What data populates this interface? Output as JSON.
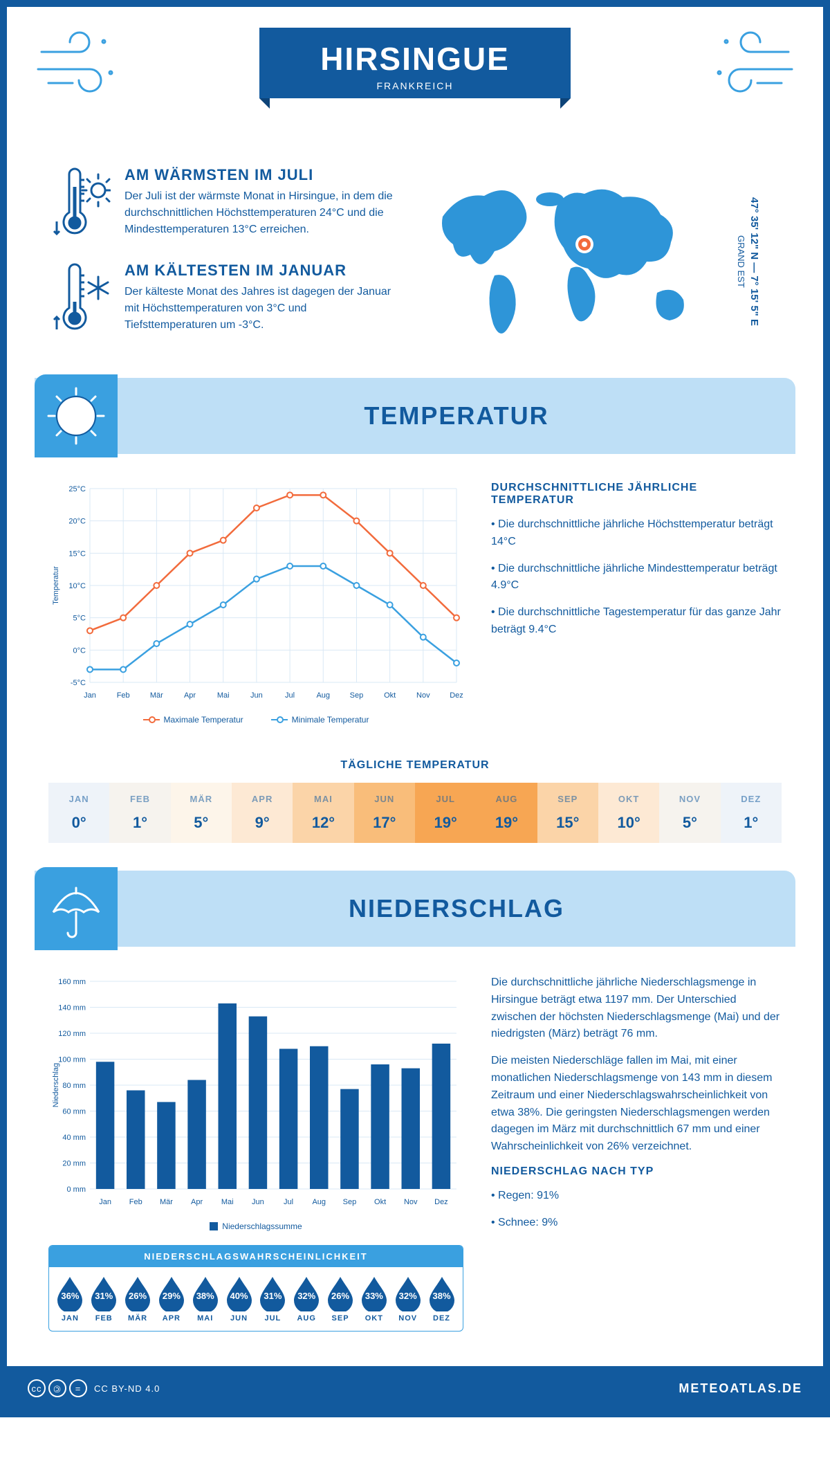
{
  "header": {
    "title": "HIRSINGUE",
    "country": "FRANKREICH"
  },
  "coords": {
    "text": "47° 35' 12\" N — 7° 15' 5\" E",
    "region": "GRAND EST"
  },
  "warm": {
    "title": "AM WÄRMSTEN IM JULI",
    "text": "Der Juli ist der wärmste Monat in Hirsingue, in dem die durchschnittlichen Höchsttemperaturen 24°C und die Mindesttemperaturen 13°C erreichen."
  },
  "cold": {
    "title": "AM KÄLTESTEN IM JANUAR",
    "text": "Der kälteste Monat des Jahres ist dagegen der Januar mit Höchsttemperaturen von 3°C und Tiefsttemperaturen um -3°C."
  },
  "temp_section": {
    "title": "TEMPERATUR"
  },
  "temp_chart": {
    "months": [
      "Jan",
      "Feb",
      "Mär",
      "Apr",
      "Mai",
      "Jun",
      "Jul",
      "Aug",
      "Sep",
      "Okt",
      "Nov",
      "Dez"
    ],
    "max": [
      3,
      5,
      10,
      15,
      17,
      22,
      24,
      24,
      20,
      15,
      10,
      5
    ],
    "min": [
      -3,
      -3,
      1,
      4,
      7,
      11,
      13,
      13,
      10,
      7,
      2,
      -2
    ],
    "ylabel": "Temperatur",
    "yticks": [
      "-5°C",
      "0°C",
      "5°C",
      "10°C",
      "15°C",
      "20°C",
      "25°C"
    ],
    "ylim": [
      -5,
      25
    ],
    "max_color": "#f26b3c",
    "min_color": "#3aa0e0",
    "grid_color": "#d9e8f5",
    "legend_max": "Maximale Temperatur",
    "legend_min": "Minimale Temperatur"
  },
  "temp_text": {
    "title": "DURCHSCHNITTLICHE JÄHRLICHE TEMPERATUR",
    "b1": "• Die durchschnittliche jährliche Höchsttemperatur beträgt 14°C",
    "b2": "• Die durchschnittliche jährliche Mindesttemperatur beträgt 4.9°C",
    "b3": "• Die durchschnittliche Tagestemperatur für das ganze Jahr beträgt 9.4°C"
  },
  "daily": {
    "title": "TÄGLICHE TEMPERATUR",
    "months": [
      "JAN",
      "FEB",
      "MÄR",
      "APR",
      "MAI",
      "JUN",
      "JUL",
      "AUG",
      "SEP",
      "OKT",
      "NOV",
      "DEZ"
    ],
    "temps": [
      "0°",
      "1°",
      "5°",
      "9°",
      "12°",
      "17°",
      "19°",
      "19°",
      "15°",
      "10°",
      "5°",
      "1°"
    ],
    "colors": [
      "#eef3f9",
      "#f6f3ee",
      "#fdf5ea",
      "#fde9d4",
      "#fbd4a8",
      "#f9bd7a",
      "#f7a653",
      "#f7a653",
      "#fbd4a8",
      "#fde9d4",
      "#f6f3ee",
      "#eef3f9"
    ]
  },
  "precip_section": {
    "title": "NIEDERSCHLAG"
  },
  "precip_chart": {
    "months": [
      "Jan",
      "Feb",
      "Mär",
      "Apr",
      "Mai",
      "Jun",
      "Jul",
      "Aug",
      "Sep",
      "Okt",
      "Nov",
      "Dez"
    ],
    "values": [
      98,
      76,
      67,
      84,
      143,
      133,
      108,
      110,
      77,
      96,
      93,
      112
    ],
    "ylabel": "Niederschlag",
    "yticks": [
      "0 mm",
      "20 mm",
      "40 mm",
      "60 mm",
      "80 mm",
      "100 mm",
      "120 mm",
      "140 mm",
      "160 mm"
    ],
    "ylim": [
      0,
      160
    ],
    "bar_color": "#125a9e",
    "grid_color": "#d9e8f5",
    "legend": "Niederschlagssumme"
  },
  "precip_text": {
    "p1": "Die durchschnittliche jährliche Niederschlagsmenge in Hirsingue beträgt etwa 1197 mm. Der Unterschied zwischen der höchsten Niederschlagsmenge (Mai) und der niedrigsten (März) beträgt 76 mm.",
    "p2": "Die meisten Niederschläge fallen im Mai, mit einer monatlichen Niederschlagsmenge von 143 mm in diesem Zeitraum und einer Niederschlagswahrscheinlichkeit von etwa 38%. Die geringsten Niederschlagsmengen werden dagegen im März mit durchschnittlich 67 mm und einer Wahrscheinlichkeit von 26% verzeichnet.",
    "type_title": "NIEDERSCHLAG NACH TYP",
    "type1": "• Regen: 91%",
    "type2": "• Schnee: 9%"
  },
  "prob": {
    "title": "NIEDERSCHLAGSWAHRSCHEINLICHKEIT",
    "months": [
      "JAN",
      "FEB",
      "MÄR",
      "APR",
      "MAI",
      "JUN",
      "JUL",
      "AUG",
      "SEP",
      "OKT",
      "NOV",
      "DEZ"
    ],
    "pct": [
      "36%",
      "31%",
      "26%",
      "29%",
      "38%",
      "40%",
      "31%",
      "32%",
      "26%",
      "33%",
      "32%",
      "38%"
    ],
    "drop_color": "#125a9e"
  },
  "footer": {
    "license": "CC BY-ND 4.0",
    "brand": "METEOATLAS.DE"
  }
}
